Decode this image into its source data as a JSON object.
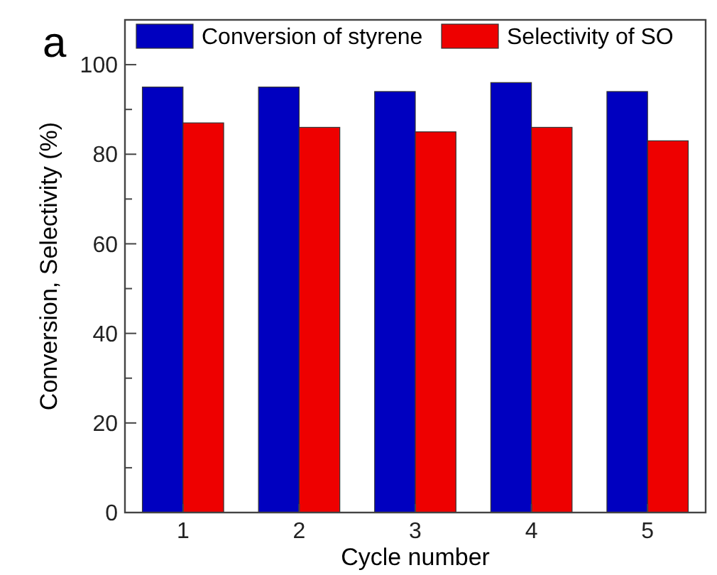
{
  "chart_data": {
    "type": "bar",
    "annotations": [
      "a"
    ],
    "xlabel": "Cycle number",
    "ylabel": "Conversion, Selectivity (%)",
    "categories": [
      "1",
      "2",
      "3",
      "4",
      "5"
    ],
    "series": [
      {
        "name": "Conversion of styrene",
        "color": "#0000c0",
        "values": [
          95,
          95,
          94,
          96,
          94
        ]
      },
      {
        "name": "Selectivity of SO",
        "color": "#ee0000",
        "values": [
          87,
          86,
          85,
          86,
          83
        ]
      }
    ],
    "ylim": [
      0,
      110
    ],
    "yticks": [
      0,
      {
        "value": 10,
        "label": null
      },
      20,
      {
        "value": 30,
        "label": null
      },
      40,
      {
        "value": 50,
        "label": null
      },
      60,
      {
        "value": 70,
        "label": null
      },
      80,
      {
        "value": 90,
        "label": null
      },
      100
    ],
    "legend": "top"
  }
}
